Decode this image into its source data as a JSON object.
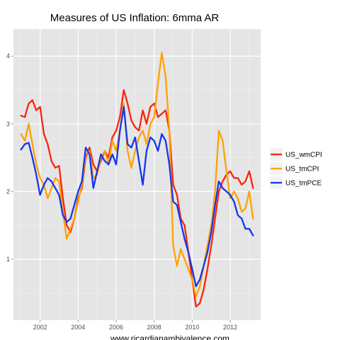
{
  "chart_data": {
    "type": "line",
    "title": "Measures of US Inflation: 6mma AR",
    "xlabel": "www.ricardianambivalence.com",
    "ylabel": "",
    "xlim": [
      2000.6,
      2013.6
    ],
    "ylim": [
      0.1,
      4.4
    ],
    "x_ticks": [
      2002,
      2004,
      2006,
      2008,
      2010,
      2012
    ],
    "x_tick_labels": [
      "2002",
      "2004",
      "2006",
      "2008",
      "2010",
      "2012"
    ],
    "y_ticks": [
      1,
      2,
      3,
      4
    ],
    "y_tick_labels": [
      "1",
      "2",
      "3",
      "4"
    ],
    "grid": true,
    "legend_position": "right",
    "series": [
      {
        "name": "US_wmCPI",
        "color": "#f8260c",
        "x": [
          2001.0,
          2001.2,
          2001.4,
          2001.6,
          2001.8,
          2002.0,
          2002.2,
          2002.4,
          2002.6,
          2002.8,
          2003.0,
          2003.2,
          2003.4,
          2003.6,
          2003.8,
          2004.0,
          2004.2,
          2004.4,
          2004.6,
          2004.8,
          2005.0,
          2005.2,
          2005.4,
          2005.6,
          2005.8,
          2006.0,
          2006.2,
          2006.4,
          2006.6,
          2006.8,
          2007.0,
          2007.2,
          2007.4,
          2007.6,
          2007.8,
          2008.0,
          2008.2,
          2008.4,
          2008.6,
          2008.8,
          2009.0,
          2009.2,
          2009.4,
          2009.6,
          2009.8,
          2010.0,
          2010.2,
          2010.4,
          2010.6,
          2010.8,
          2011.0,
          2011.2,
          2011.4,
          2011.6,
          2011.8,
          2012.0,
          2012.2,
          2012.4,
          2012.6,
          2012.8,
          2013.0,
          2013.2
        ],
        "values": [
          3.12,
          3.1,
          3.3,
          3.35,
          3.2,
          3.25,
          2.85,
          2.7,
          2.45,
          2.35,
          2.38,
          1.9,
          1.5,
          1.4,
          1.6,
          1.9,
          2.05,
          2.5,
          2.65,
          2.4,
          2.3,
          2.45,
          2.6,
          2.5,
          2.8,
          2.9,
          3.1,
          3.5,
          3.3,
          3.05,
          2.95,
          2.9,
          3.2,
          3.0,
          3.25,
          3.3,
          3.1,
          3.15,
          3.2,
          2.9,
          2.1,
          1.95,
          1.6,
          1.5,
          1.1,
          0.7,
          0.3,
          0.35,
          0.55,
          0.85,
          1.2,
          1.6,
          2.0,
          2.15,
          2.25,
          2.3,
          2.2,
          2.2,
          2.1,
          2.15,
          2.3,
          2.05
        ]
      },
      {
        "name": "US_tmCPI",
        "color": "#fea200",
        "x": [
          2001.0,
          2001.2,
          2001.4,
          2001.6,
          2001.8,
          2002.0,
          2002.2,
          2002.4,
          2002.6,
          2002.8,
          2003.0,
          2003.2,
          2003.4,
          2003.6,
          2003.8,
          2004.0,
          2004.2,
          2004.4,
          2004.6,
          2004.8,
          2005.0,
          2005.2,
          2005.4,
          2005.6,
          2005.8,
          2006.0,
          2006.2,
          2006.4,
          2006.6,
          2006.8,
          2007.0,
          2007.2,
          2007.4,
          2007.6,
          2007.8,
          2008.0,
          2008.2,
          2008.4,
          2008.6,
          2008.8,
          2009.0,
          2009.2,
          2009.4,
          2009.6,
          2009.8,
          2010.0,
          2010.2,
          2010.4,
          2010.6,
          2010.8,
          2011.0,
          2011.2,
          2011.4,
          2011.6,
          2011.8,
          2012.0,
          2012.2,
          2012.4,
          2012.6,
          2012.8,
          2013.0,
          2013.2
        ],
        "values": [
          2.85,
          2.75,
          3.0,
          2.7,
          2.4,
          2.2,
          2.1,
          1.9,
          2.05,
          2.2,
          2.15,
          1.7,
          1.3,
          1.45,
          1.6,
          1.85,
          2.1,
          2.55,
          2.6,
          2.2,
          2.25,
          2.5,
          2.6,
          2.4,
          2.75,
          2.6,
          2.9,
          3.3,
          2.6,
          2.35,
          2.6,
          2.8,
          2.9,
          2.7,
          3.0,
          3.1,
          3.6,
          4.05,
          3.7,
          2.9,
          1.2,
          0.9,
          1.15,
          1.0,
          0.85,
          0.7,
          0.45,
          0.6,
          0.9,
          1.2,
          1.5,
          2.0,
          2.9,
          2.75,
          2.3,
          1.9,
          2.0,
          1.9,
          1.7,
          1.75,
          2.0,
          1.6
        ]
      },
      {
        "name": "US_tmPCE",
        "color": "#1536ee",
        "x": [
          2001.0,
          2001.2,
          2001.4,
          2001.6,
          2001.8,
          2002.0,
          2002.2,
          2002.4,
          2002.6,
          2002.8,
          2003.0,
          2003.2,
          2003.4,
          2003.6,
          2003.8,
          2004.0,
          2004.2,
          2004.4,
          2004.6,
          2004.8,
          2005.0,
          2005.2,
          2005.4,
          2005.6,
          2005.8,
          2006.0,
          2006.2,
          2006.4,
          2006.6,
          2006.8,
          2007.0,
          2007.2,
          2007.4,
          2007.6,
          2007.8,
          2008.0,
          2008.2,
          2008.4,
          2008.6,
          2008.8,
          2009.0,
          2009.2,
          2009.4,
          2009.6,
          2009.8,
          2010.0,
          2010.2,
          2010.4,
          2010.6,
          2010.8,
          2011.0,
          2011.2,
          2011.4,
          2011.6,
          2011.8,
          2012.0,
          2012.2,
          2012.4,
          2012.6,
          2012.8,
          2013.0,
          2013.2
        ],
        "values": [
          2.62,
          2.7,
          2.72,
          2.5,
          2.25,
          1.95,
          2.1,
          2.2,
          2.15,
          2.05,
          1.95,
          1.65,
          1.55,
          1.6,
          1.8,
          2.0,
          2.15,
          2.65,
          2.55,
          2.05,
          2.3,
          2.55,
          2.45,
          2.4,
          2.55,
          2.4,
          2.9,
          3.25,
          2.7,
          2.65,
          2.8,
          2.45,
          2.1,
          2.6,
          2.8,
          2.75,
          2.6,
          2.85,
          2.75,
          2.4,
          1.85,
          1.8,
          1.55,
          1.3,
          1.1,
          0.85,
          0.6,
          0.7,
          0.9,
          1.1,
          1.4,
          1.8,
          2.15,
          2.05,
          2.0,
          1.95,
          1.85,
          1.65,
          1.6,
          1.45,
          1.45,
          1.35
        ]
      }
    ]
  }
}
